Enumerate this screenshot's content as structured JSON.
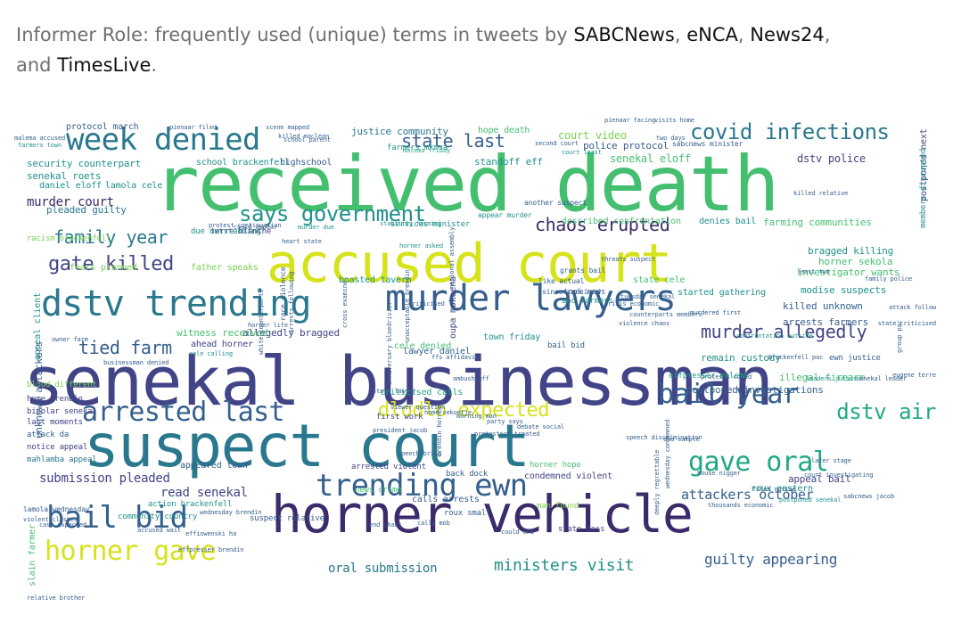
{
  "caption": {
    "lead": "Informer Role: frequently used (unique) terms in tweets by ",
    "sources": [
      "SABCNews",
      "eNCA",
      "News24"
    ],
    "sep1": ", ",
    "sep2": ", ",
    "sep3": ", ",
    "and": "and ",
    "last_source": "TimesLive",
    "end": "."
  },
  "colors": {
    "dark_purple": "#3b2b6b",
    "indigo": "#414487",
    "slate": "#355f8d",
    "blue": "#2a788e",
    "teal": "#21918c",
    "sea": "#22a884",
    "green": "#44bf70",
    "lime": "#7ad151",
    "yellow": "#d6e21a"
  },
  "words": [
    {
      "text": "received death",
      "c": "green",
      "s": 86
    },
    {
      "text": "senekal businessman",
      "c": "indigo",
      "s": 76
    },
    {
      "text": "suspect court",
      "c": "blue",
      "s": 66
    },
    {
      "text": "accused court",
      "c": "yellow",
      "s": 60
    },
    {
      "text": "horner vehicle",
      "c": "dark_purple",
      "s": 58
    },
    {
      "text": "murder lawyers",
      "c": "slate",
      "s": 40
    },
    {
      "text": "dstv trending",
      "c": "blue",
      "s": 40
    },
    {
      "text": "week denied",
      "c": "blue",
      "s": 34
    },
    {
      "text": "trending ewn",
      "c": "slate",
      "s": 34
    },
    {
      "text": "bail bid",
      "c": "slate",
      "s": 34
    },
    {
      "text": "horner gave",
      "c": "yellow",
      "s": 30
    },
    {
      "text": "arrested last",
      "c": "slate",
      "s": 30
    },
    {
      "text": "bail year",
      "c": "slate",
      "s": 30
    },
    {
      "text": "gave oral",
      "c": "sea",
      "s": 30
    },
    {
      "text": "dlodlo expected",
      "c": "yellow",
      "s": 22
    },
    {
      "text": "covid infections",
      "c": "blue",
      "s": 24
    },
    {
      "text": "says government",
      "c": "teal",
      "s": 24
    },
    {
      "text": "gate killed",
      "c": "indigo",
      "s": 22
    },
    {
      "text": "family year",
      "c": "blue",
      "s": 20
    },
    {
      "text": "state last",
      "c": "slate",
      "s": 20
    },
    {
      "text": "chaos erupted",
      "c": "dark_purple",
      "s": 20
    },
    {
      "text": "murder allegedly",
      "c": "indigo",
      "s": 20
    },
    {
      "text": "tied farm",
      "c": "slate",
      "s": 20
    },
    {
      "text": "ministers visit",
      "c": "teal",
      "s": 18
    },
    {
      "text": "dstv air",
      "c": "sea",
      "s": 24
    },
    {
      "text": "guilty appearing",
      "c": "slate",
      "s": 16
    },
    {
      "text": "attackers october",
      "c": "slate",
      "s": 15
    },
    {
      "text": "submission pleaded",
      "c": "indigo",
      "s": 14
    },
    {
      "text": "read senekal",
      "c": "indigo",
      "s": 14
    },
    {
      "text": "oral submission",
      "c": "blue",
      "s": 14
    },
    {
      "text": "murder court",
      "c": "dark_purple",
      "s": 14
    },
    {
      "text": "court video",
      "c": "lime",
      "s": 12
    },
    {
      "text": "senekal eloff",
      "c": "green",
      "s": 12
    },
    {
      "text": "dstv police",
      "c": "indigo",
      "s": 12
    },
    {
      "text": "police protocol",
      "c": "slate",
      "s": 11
    },
    {
      "text": "standoff eff",
      "c": "teal",
      "s": 11
    },
    {
      "text": "security counterpart",
      "c": "teal",
      "s": 11
    },
    {
      "text": "school brackenfell",
      "c": "teal",
      "s": 10
    },
    {
      "text": "highschool",
      "c": "slate",
      "s": 10
    },
    {
      "text": "justice community",
      "c": "blue",
      "s": 11
    },
    {
      "text": "hope death",
      "c": "green",
      "s": 10
    },
    {
      "text": "protocol march",
      "c": "slate",
      "s": 10
    },
    {
      "text": "senekal roets",
      "c": "teal",
      "s": 11
    },
    {
      "text": "daniel eloff",
      "c": "teal",
      "s": 10
    },
    {
      "text": "lamola cele",
      "c": "teal",
      "s": 10
    },
    {
      "text": "pleaded guilty",
      "c": "blue",
      "s": 11
    },
    {
      "text": "farming communities",
      "c": "green",
      "s": 11
    },
    {
      "text": "bragged killing",
      "c": "teal",
      "s": 11
    },
    {
      "text": "horner sekola",
      "c": "green",
      "s": 11
    },
    {
      "text": "investigator wants",
      "c": "green",
      "s": 11
    },
    {
      "text": "modise suspects",
      "c": "teal",
      "s": 11
    },
    {
      "text": "killed unknown",
      "c": "slate",
      "s": 11
    },
    {
      "text": "arrests farmers",
      "c": "slate",
      "s": 11
    },
    {
      "text": "remain custody",
      "c": "teal",
      "s": 11
    },
    {
      "text": "illegal firearm",
      "c": "green",
      "s": 11
    },
    {
      "text": "postponed investigations",
      "c": "slate",
      "s": 11
    },
    {
      "text": "appeal bail",
      "c": "indigo",
      "s": 11
    },
    {
      "text": "roux eastern",
      "c": "teal",
      "s": 10
    },
    {
      "text": "allegedly bragged",
      "c": "indigo",
      "s": 11
    },
    {
      "text": "cele denied",
      "c": "green",
      "s": 10
    },
    {
      "text": "lawyer daniel",
      "c": "slate",
      "s": 10
    },
    {
      "text": "town friday",
      "c": "teal",
      "s": 10
    },
    {
      "text": "witness received",
      "c": "green",
      "s": 11
    },
    {
      "text": "ahead horner",
      "c": "indigo",
      "s": 10
    },
    {
      "text": "boasted tavern",
      "c": "teal",
      "s": 10
    },
    {
      "text": "state cele",
      "c": "green",
      "s": 10
    },
    {
      "text": "started gathering",
      "c": "teal",
      "s": 10
    },
    {
      "text": "described confrontation",
      "c": "green",
      "s": 10
    },
    {
      "text": "denies bail",
      "c": "teal",
      "s": 10
    },
    {
      "text": "services minister",
      "c": "teal",
      "s": 9
    },
    {
      "text": "terre blanche",
      "c": "indigo",
      "s": 9
    },
    {
      "text": "fears planned",
      "c": "lime",
      "s": 10
    },
    {
      "text": "father speaks",
      "c": "lime",
      "s": 10
    },
    {
      "text": "criticised calls",
      "c": "sea",
      "s": 10
    },
    {
      "text": "first work",
      "c": "indigo",
      "s": 9
    },
    {
      "text": "effpresser malema",
      "c": "sea",
      "s": 9
    },
    {
      "text": "home brendin",
      "c": "indigo",
      "s": 9
    },
    {
      "text": "bipolar senekal",
      "c": "indigo",
      "s": 9
    },
    {
      "text": "last moments",
      "c": "indigo",
      "s": 9
    },
    {
      "text": "blood different",
      "c": "lime",
      "s": 9
    },
    {
      "text": "attack da",
      "c": "slate",
      "s": 9
    },
    {
      "text": "notice appeal",
      "c": "indigo",
      "s": 9
    },
    {
      "text": "mahlamba appeal",
      "c": "blue",
      "s": 9
    },
    {
      "text": "appeared town",
      "c": "slate",
      "s": 10
    },
    {
      "text": "arrested violent",
      "c": "indigo",
      "s": 9
    },
    {
      "text": "back dock",
      "c": "slate",
      "s": 9
    },
    {
      "text": "horner hope",
      "c": "green",
      "s": 9
    },
    {
      "text": "condemned violent",
      "c": "indigo",
      "s": 10
    },
    {
      "text": "news crime",
      "c": "green",
      "s": 9
    },
    {
      "text": "calls arrests",
      "c": "slate",
      "s": 10
    },
    {
      "text": "action brackenfell",
      "c": "teal",
      "s": 9
    },
    {
      "text": "community country",
      "c": "teal",
      "s": 9
    },
    {
      "text": "suspect relative",
      "c": "slate",
      "s": 9
    },
    {
      "text": "man found",
      "c": "lime",
      "s": 9
    },
    {
      "text": "state boss",
      "c": "indigo",
      "s": 9
    },
    {
      "text": "bail bid",
      "c": "slate",
      "s": 9
    },
    {
      "text": "took news",
      "c": "slate",
      "s": 9
    },
    {
      "text": "anc farmers",
      "c": "teal",
      "s": 9
    },
    {
      "text": "farmers mkmva",
      "c": "teal",
      "s": 9
    },
    {
      "text": "due outstanding",
      "c": "teal",
      "s": 9
    },
    {
      "text": "racism brackenfell",
      "c": "lime",
      "s": 9
    },
    {
      "text": "appeal client",
      "c": "teal",
      "s": 10,
      "v": true
    },
    {
      "text": "unknown attackers",
      "c": "slate",
      "s": 11,
      "v": true
    },
    {
      "text": "slain farmer",
      "c": "green",
      "s": 10,
      "v": true
    },
    {
      "text": "oupa mokoena",
      "c": "indigo",
      "s": 10,
      "v": true
    },
    {
      "text": "postponed next",
      "c": "indigo",
      "s": 10,
      "v": true
    },
    {
      "text": "members disrupted",
      "c": "teal",
      "s": 9,
      "v": true
    },
    {
      "text": "ewn justice",
      "c": "slate",
      "s": 9
    },
    {
      "text": "since received",
      "c": "slate",
      "s": 8
    },
    {
      "text": "like actual",
      "c": "slate",
      "s": 8
    },
    {
      "text": "grants bail",
      "c": "slate",
      "s": 8
    },
    {
      "text": "second court",
      "c": "slate",
      "s": 7
    },
    {
      "text": "court least",
      "c": "teal",
      "s": 7
    },
    {
      "text": "murder due",
      "c": "teal",
      "s": 7
    },
    {
      "text": "malema friday",
      "c": "sea",
      "s": 7
    },
    {
      "text": "two days",
      "c": "slate",
      "s": 7
    },
    {
      "text": "sabcnews minister",
      "c": "slate",
      "s": 8
    },
    {
      "text": "killed relative",
      "c": "slate",
      "s": 7
    },
    {
      "text": "another suspect",
      "c": "slate",
      "s": 8
    },
    {
      "text": "appear murder",
      "c": "teal",
      "s": 8
    },
    {
      "text": "stability farming",
      "c": "teal",
      "s": 7
    },
    {
      "text": "protest continuation",
      "c": "slate",
      "s": 7
    },
    {
      "text": "heart state",
      "c": "slate",
      "s": 7
    },
    {
      "text": "horner asked",
      "c": "teal",
      "s": 7
    },
    {
      "text": "least two",
      "c": "slate",
      "s": 7
    },
    {
      "text": "family police",
      "c": "slate",
      "s": 7
    },
    {
      "text": "counterparts members",
      "c": "slate",
      "s": 7
    },
    {
      "text": "violence chaos",
      "c": "slate",
      "s": 7
    },
    {
      "text": "murdered first",
      "c": "slate",
      "s": 7
    },
    {
      "text": "confrontation outside",
      "c": "teal",
      "s": 7
    },
    {
      "text": "protests could",
      "c": "slate",
      "s": 7
    },
    {
      "text": "leaders julius",
      "c": "teal",
      "s": 7
    },
    {
      "text": "senekal leader",
      "c": "slate",
      "s": 7
    },
    {
      "text": "eugene terre",
      "c": "slate",
      "s": 7
    },
    {
      "text": "speech discrimination",
      "c": "slate",
      "s": 7
    },
    {
      "text": "dna sample",
      "c": "slate",
      "s": 7
    },
    {
      "text": "later stage",
      "c": "slate",
      "s": 7
    },
    {
      "text": "house nigger",
      "c": "slate",
      "s": 7
    },
    {
      "text": "filed notice",
      "c": "slate",
      "s": 7
    },
    {
      "text": "postponed senekal",
      "c": "teal",
      "s": 7
    },
    {
      "text": "could end",
      "c": "slate",
      "s": 7
    },
    {
      "text": "calls mob",
      "c": "slate",
      "s": 7
    },
    {
      "text": "end chaos",
      "c": "slate",
      "s": 7
    },
    {
      "text": "roux small",
      "c": "slate",
      "s": 9
    },
    {
      "text": "president jacob",
      "c": "slate",
      "s": 7
    },
    {
      "text": "protesters treated",
      "c": "slate",
      "s": 7
    },
    {
      "text": "viewer question",
      "c": "slate",
      "s": 7
    },
    {
      "text": "home sekoetje",
      "c": "slate",
      "s": 7
    },
    {
      "text": "morning man",
      "c": "slate",
      "s": 7
    },
    {
      "text": "party says",
      "c": "slate",
      "s": 7
    },
    {
      "text": "debate social",
      "c": "slate",
      "s": 7
    },
    {
      "text": "wednesday brendin",
      "c": "slate",
      "s": 7
    },
    {
      "text": "effiowenski ha",
      "c": "slate",
      "s": 7
    },
    {
      "text": "lamola wednesday",
      "c": "slate",
      "s": 8
    },
    {
      "text": "violent clashes",
      "c": "slate",
      "s": 7
    },
    {
      "text": "accused wait",
      "c": "slate",
      "s": 7
    },
    {
      "text": "effpresser brendin",
      "c": "slate",
      "s": 7
    },
    {
      "text": "businessman denied",
      "c": "slate",
      "s": 7
    },
    {
      "text": "owner farm",
      "c": "slate",
      "s": 7
    },
    {
      "text": "cele calling",
      "c": "teal",
      "s": 7
    },
    {
      "text": "case expected",
      "c": "slate",
      "s": 7
    },
    {
      "text": "malema accused",
      "c": "slate",
      "s": 7
    },
    {
      "text": "farmers town",
      "c": "teal",
      "s": 7
    },
    {
      "text": "pienaar filed",
      "c": "slate",
      "s": 7
    },
    {
      "text": "scene mapped",
      "c": "slate",
      "s": 7
    },
    {
      "text": "killed maclean",
      "c": "slate",
      "s": 7
    },
    {
      "text": "school parent",
      "c": "slate",
      "s": 7
    },
    {
      "text": "pienaar facing",
      "c": "slate",
      "s": 7
    },
    {
      "text": "visits home",
      "c": "slate",
      "s": 7
    },
    {
      "text": "relative brother",
      "c": "slate",
      "s": 7
    },
    {
      "text": "deeply regrettable",
      "c": "slate",
      "s": 7,
      "v": true
    },
    {
      "text": "wednesday condemned",
      "c": "slate",
      "s": 7,
      "v": true
    },
    {
      "text": "thousands economic",
      "c": "slate",
      "s": 7
    },
    {
      "text": "tuesday senekal",
      "c": "slate",
      "s": 7
    },
    {
      "text": "threats suspect",
      "c": "slate",
      "s": 7
    },
    {
      "text": "national assembly",
      "c": "slate",
      "s": 7,
      "v": true
    },
    {
      "text": "race violence",
      "c": "slate",
      "s": 8,
      "v": true
    },
    {
      "text": "cross examine",
      "c": "slate",
      "s": 7,
      "v": true
    },
    {
      "text": "arrests following",
      "c": "slate",
      "s": 7,
      "v": true
    },
    {
      "text": "horner life",
      "c": "slate",
      "s": 7
    },
    {
      "text": "unacceptable brendin",
      "c": "slate",
      "s": 7,
      "v": true
    },
    {
      "text": "state lawyer",
      "c": "slate",
      "s": 7
    },
    {
      "text": "anniversary bloedrivier",
      "c": "slate",
      "s": 7,
      "v": true
    },
    {
      "text": "white counterparts",
      "c": "slate",
      "s": 7,
      "v": true
    },
    {
      "text": "group pac",
      "c": "slate",
      "s": 7,
      "v": true
    },
    {
      "text": "brackenfell pac",
      "c": "slate",
      "s": 7
    },
    {
      "text": "state criticised",
      "c": "slate",
      "s": 7
    },
    {
      "text": "attack follow",
      "c": "slate",
      "s": 7
    },
    {
      "text": "court investigating",
      "c": "slate",
      "s": 7
    },
    {
      "text": "sabcnews jacob",
      "c": "slate",
      "s": 7
    },
    {
      "text": "speech bring",
      "c": "slate",
      "s": 7
    },
    {
      "text": "brendin horner",
      "c": "slate",
      "s": 7,
      "v": true
    },
    {
      "text": "ambush eff",
      "c": "slate",
      "s": 7
    },
    {
      "text": "criticised",
      "c": "slate",
      "s": 7
    },
    {
      "text": "ffs affidavit",
      "c": "slate",
      "s": 7
    },
    {
      "text": "could appear",
      "c": "slate",
      "s": 7
    },
    {
      "text": "crisis economic",
      "c": "slate",
      "s": 7
    }
  ]
}
